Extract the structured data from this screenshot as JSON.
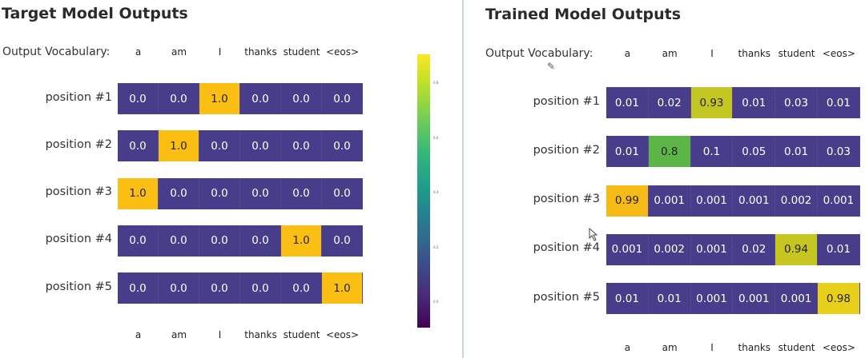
{
  "left": {
    "title": "Target Model Outputs",
    "vocab_label": "Output Vocabulary:",
    "vocab": [
      "a",
      "am",
      "I",
      "thanks",
      "student",
      "<eos>"
    ],
    "rows": [
      {
        "label": "position #1",
        "values": [
          "0.0",
          "0.0",
          "1.0",
          "0.0",
          "0.0",
          "0.0"
        ],
        "colors": [
          "#483d8b",
          "#483d8b",
          "#fbbf14",
          "#483d8b",
          "#483d8b",
          "#483d8b"
        ]
      },
      {
        "label": "position #2",
        "values": [
          "0.0",
          "1.0",
          "0.0",
          "0.0",
          "0.0",
          "0.0"
        ],
        "colors": [
          "#483d8b",
          "#fbbf14",
          "#483d8b",
          "#483d8b",
          "#483d8b",
          "#483d8b"
        ]
      },
      {
        "label": "position #3",
        "values": [
          "1.0",
          "0.0",
          "0.0",
          "0.0",
          "0.0",
          "0.0"
        ],
        "colors": [
          "#fbbf14",
          "#483d8b",
          "#483d8b",
          "#483d8b",
          "#483d8b",
          "#483d8b"
        ]
      },
      {
        "label": "position #4",
        "values": [
          "0.0",
          "0.0",
          "0.0",
          "0.0",
          "1.0",
          "0.0"
        ],
        "colors": [
          "#483d8b",
          "#483d8b",
          "#483d8b",
          "#483d8b",
          "#fbbf14",
          "#483d8b"
        ]
      },
      {
        "label": "position #5",
        "values": [
          "0.0",
          "0.0",
          "0.0",
          "0.0",
          "0.0",
          "1.0"
        ],
        "colors": [
          "#483d8b",
          "#483d8b",
          "#483d8b",
          "#483d8b",
          "#483d8b",
          "#fbbf14"
        ]
      }
    ],
    "bottom_vocab": [
      "a",
      "am",
      "I",
      "thanks",
      "student",
      "<eos>"
    ]
  },
  "colorbar": {
    "ticks": [
      "0.8",
      "0.6",
      "0.4",
      "0.2",
      "0.0"
    ]
  },
  "right": {
    "title": "Trained Model Outputs",
    "vocab_label": "Output Vocabulary:",
    "vocab": [
      "a",
      "am",
      "I",
      "thanks",
      "student",
      "<eos>"
    ],
    "rows": [
      {
        "label": "position #1",
        "values": [
          "0.01",
          "0.02",
          "0.93",
          "0.01",
          "0.03",
          "0.01"
        ],
        "colors": [
          "#483d8b",
          "#483d8b",
          "#c6c623",
          "#483d8b",
          "#483d8b",
          "#483d8b"
        ]
      },
      {
        "label": "position #2",
        "values": [
          "0.01",
          "0.8",
          "0.1",
          "0.05",
          "0.01",
          "0.03"
        ],
        "colors": [
          "#483d8b",
          "#5cb547",
          "#483d8b",
          "#483d8b",
          "#483d8b",
          "#483d8b"
        ]
      },
      {
        "label": "position #3",
        "values": [
          "0.99",
          "0.001",
          "0.001",
          "0.001",
          "0.002",
          "0.001"
        ],
        "colors": [
          "#f6bb16",
          "#483d8b",
          "#483d8b",
          "#483d8b",
          "#483d8b",
          "#483d8b"
        ]
      },
      {
        "label": "position #4",
        "values": [
          "0.001",
          "0.002",
          "0.001",
          "0.02",
          "0.94",
          "0.01"
        ],
        "colors": [
          "#483d8b",
          "#483d8b",
          "#483d8b",
          "#483d8b",
          "#c6c623",
          "#483d8b"
        ]
      },
      {
        "label": "position #5",
        "values": [
          "0.01",
          "0.01",
          "0.001",
          "0.001",
          "0.001",
          "0.98"
        ],
        "colors": [
          "#483d8b",
          "#483d8b",
          "#483d8b",
          "#483d8b",
          "#483d8b",
          "#e8cf1a"
        ]
      }
    ],
    "bottom_vocab": [
      "a",
      "am",
      "I",
      "thanks",
      "student",
      "<eos>"
    ]
  }
}
